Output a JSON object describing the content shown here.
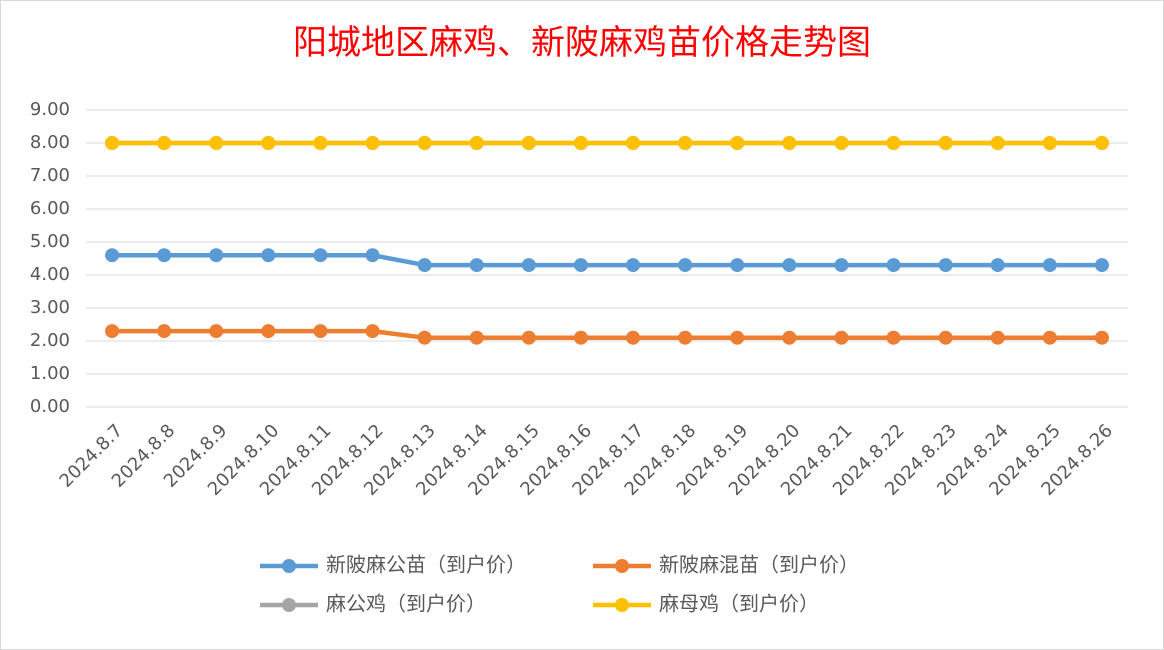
{
  "chart_data": {
    "type": "line",
    "title": "阳城地区麻鸡、新陂麻鸡苗价格走势图",
    "categories": [
      "2024.8.7",
      "2024.8.8",
      "2024.8.9",
      "2024.8.10",
      "2024.8.11",
      "2024.8.12",
      "2024.8.13",
      "2024.8.14",
      "2024.8.15",
      "2024.8.16",
      "2024.8.17",
      "2024.8.18",
      "2024.8.19",
      "2024.8.20",
      "2024.8.21",
      "2024.8.22",
      "2024.8.23",
      "2024.8.24",
      "2024.8.25",
      "2024.8.26"
    ],
    "series": [
      {
        "name": "新陂麻公苗（到户价）",
        "color": "#5b9bd5",
        "values": [
          4.6,
          4.6,
          4.6,
          4.6,
          4.6,
          4.6,
          4.3,
          4.3,
          4.3,
          4.3,
          4.3,
          4.3,
          4.3,
          4.3,
          4.3,
          4.3,
          4.3,
          4.3,
          4.3,
          4.3
        ]
      },
      {
        "name": "新陂麻混苗（到户价）",
        "color": "#ed7d31",
        "values": [
          2.3,
          2.3,
          2.3,
          2.3,
          2.3,
          2.3,
          2.1,
          2.1,
          2.1,
          2.1,
          2.1,
          2.1,
          2.1,
          2.1,
          2.1,
          2.1,
          2.1,
          2.1,
          2.1,
          2.1
        ]
      },
      {
        "name": "麻公鸡（到户价）",
        "color": "#a5a5a5",
        "values": [
          8,
          8,
          8,
          8,
          8,
          8,
          8,
          8,
          8,
          8,
          8,
          8,
          8,
          8,
          8,
          8,
          8,
          8,
          8,
          8
        ]
      },
      {
        "name": "麻母鸡（到户价）",
        "color": "#ffc000",
        "values": [
          8,
          8,
          8,
          8,
          8,
          8,
          8,
          8,
          8,
          8,
          8,
          8,
          8,
          8,
          8,
          8,
          8,
          8,
          8,
          8
        ]
      }
    ],
    "ylim": [
      0,
      9
    ],
    "yticks": [
      {
        "value": 0,
        "label": "0.00"
      },
      {
        "value": 1,
        "label": "1.00"
      },
      {
        "value": 2,
        "label": "2.00"
      },
      {
        "value": 3,
        "label": "3.00"
      },
      {
        "value": 4,
        "label": "4.00"
      },
      {
        "value": 5,
        "label": "5.00"
      },
      {
        "value": 6,
        "label": "6.00"
      },
      {
        "value": 7,
        "label": "7.00"
      },
      {
        "value": 8,
        "label": "8.00"
      },
      {
        "value": 9,
        "label": "9.00"
      }
    ],
    "grid": true,
    "legend": "bottom"
  }
}
